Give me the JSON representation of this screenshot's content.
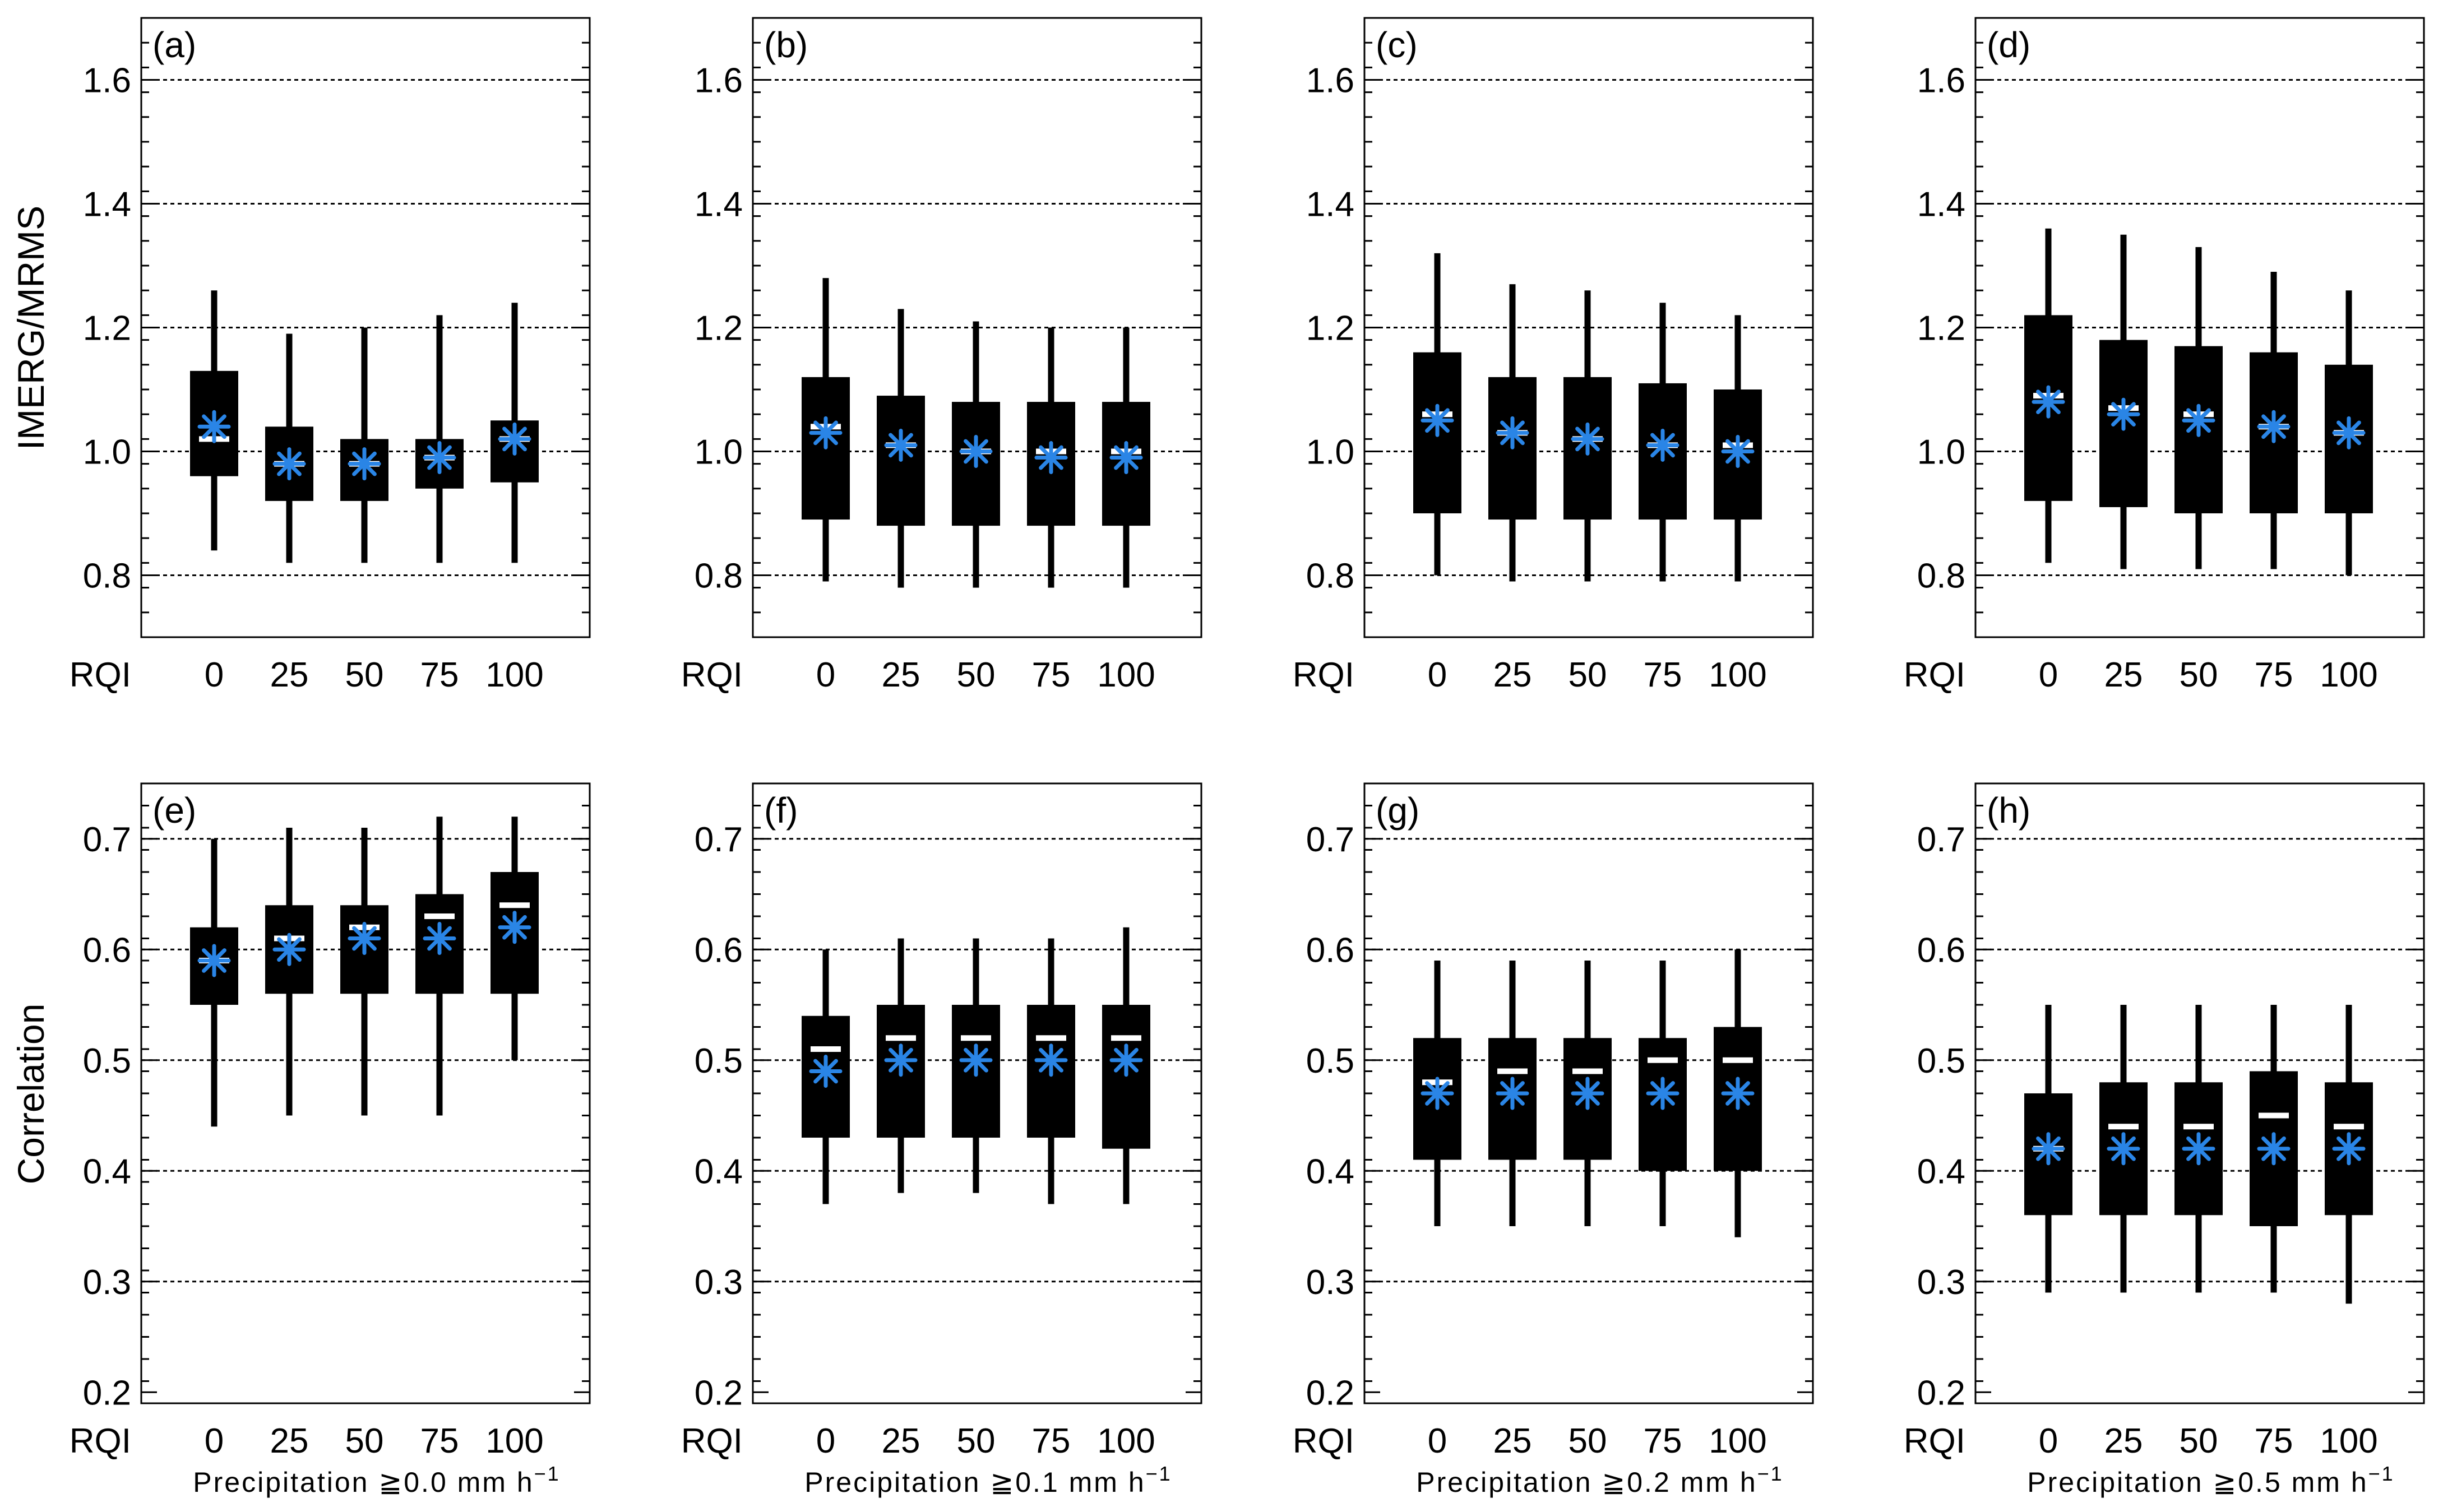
{
  "colors": {
    "box": "#000000",
    "median": "#ffffff",
    "mean": "#2a85e6",
    "grid": "#000000"
  },
  "x_axis_name": "RQI",
  "row_ylabels": [
    "IMERG/MRMS",
    "Correlation"
  ],
  "chart_data": [
    {
      "type": "box",
      "panel": "(a)",
      "ylabel": "IMERG/MRMS",
      "xlabel": "",
      "categories": [
        "0",
        "25",
        "50",
        "75",
        "100"
      ],
      "ylim": [
        0.7,
        1.7
      ],
      "yticks": [
        "0.8",
        "1.0",
        "1.2",
        "1.4",
        "1.6"
      ],
      "gridlines": [
        0.8,
        1.0,
        1.2,
        1.4,
        1.6
      ],
      "boxes": [
        {
          "min": 0.84,
          "q1": 0.96,
          "median": 1.02,
          "q3": 1.13,
          "max": 1.26,
          "mean": 1.04
        },
        {
          "min": 0.82,
          "q1": 0.92,
          "median": 0.98,
          "q3": 1.04,
          "max": 1.19,
          "mean": 0.98
        },
        {
          "min": 0.82,
          "q1": 0.92,
          "median": 0.98,
          "q3": 1.02,
          "max": 1.2,
          "mean": 0.98
        },
        {
          "min": 0.82,
          "q1": 0.94,
          "median": 0.99,
          "q3": 1.02,
          "max": 1.22,
          "mean": 0.99
        },
        {
          "min": 0.82,
          "q1": 0.95,
          "median": 1.02,
          "q3": 1.05,
          "max": 1.24,
          "mean": 1.02
        }
      ]
    },
    {
      "type": "box",
      "panel": "(b)",
      "ylabel": "",
      "xlabel": "",
      "categories": [
        "0",
        "25",
        "50",
        "75",
        "100"
      ],
      "ylim": [
        0.7,
        1.7
      ],
      "yticks": [
        "0.8",
        "1.0",
        "1.2",
        "1.4",
        "1.6"
      ],
      "gridlines": [
        0.8,
        1.0,
        1.2,
        1.4,
        1.6
      ],
      "boxes": [
        {
          "min": 0.79,
          "q1": 0.89,
          "median": 1.04,
          "q3": 1.12,
          "max": 1.28,
          "mean": 1.03
        },
        {
          "min": 0.78,
          "q1": 0.88,
          "median": 1.01,
          "q3": 1.09,
          "max": 1.23,
          "mean": 1.01
        },
        {
          "min": 0.78,
          "q1": 0.88,
          "median": 1.0,
          "q3": 1.08,
          "max": 1.21,
          "mean": 1.0
        },
        {
          "min": 0.78,
          "q1": 0.88,
          "median": 1.0,
          "q3": 1.08,
          "max": 1.2,
          "mean": 0.99
        },
        {
          "min": 0.78,
          "q1": 0.88,
          "median": 1.0,
          "q3": 1.08,
          "max": 1.2,
          "mean": 0.99
        }
      ]
    },
    {
      "type": "box",
      "panel": "(c)",
      "ylabel": "",
      "xlabel": "",
      "categories": [
        "0",
        "25",
        "50",
        "75",
        "100"
      ],
      "ylim": [
        0.7,
        1.7
      ],
      "yticks": [
        "0.8",
        "1.0",
        "1.2",
        "1.4",
        "1.6"
      ],
      "gridlines": [
        0.8,
        1.0,
        1.2,
        1.4,
        1.6
      ],
      "boxes": [
        {
          "min": 0.8,
          "q1": 0.9,
          "median": 1.06,
          "q3": 1.16,
          "max": 1.32,
          "mean": 1.05
        },
        {
          "min": 0.79,
          "q1": 0.89,
          "median": 1.03,
          "q3": 1.12,
          "max": 1.27,
          "mean": 1.03
        },
        {
          "min": 0.79,
          "q1": 0.89,
          "median": 1.02,
          "q3": 1.12,
          "max": 1.26,
          "mean": 1.02
        },
        {
          "min": 0.79,
          "q1": 0.89,
          "median": 1.01,
          "q3": 1.11,
          "max": 1.24,
          "mean": 1.01
        },
        {
          "min": 0.79,
          "q1": 0.89,
          "median": 1.01,
          "q3": 1.1,
          "max": 1.22,
          "mean": 1.0
        }
      ]
    },
    {
      "type": "box",
      "panel": "(d)",
      "ylabel": "",
      "xlabel": "",
      "categories": [
        "0",
        "25",
        "50",
        "75",
        "100"
      ],
      "ylim": [
        0.7,
        1.7
      ],
      "yticks": [
        "0.8",
        "1.0",
        "1.2",
        "1.4",
        "1.6"
      ],
      "gridlines": [
        0.8,
        1.0,
        1.2,
        1.4,
        1.6
      ],
      "boxes": [
        {
          "min": 0.82,
          "q1": 0.92,
          "median": 1.09,
          "q3": 1.22,
          "max": 1.36,
          "mean": 1.08
        },
        {
          "min": 0.81,
          "q1": 0.91,
          "median": 1.07,
          "q3": 1.18,
          "max": 1.35,
          "mean": 1.06
        },
        {
          "min": 0.81,
          "q1": 0.9,
          "median": 1.06,
          "q3": 1.17,
          "max": 1.33,
          "mean": 1.05
        },
        {
          "min": 0.81,
          "q1": 0.9,
          "median": 1.04,
          "q3": 1.16,
          "max": 1.29,
          "mean": 1.04
        },
        {
          "min": 0.8,
          "q1": 0.9,
          "median": 1.03,
          "q3": 1.14,
          "max": 1.26,
          "mean": 1.03
        }
      ]
    },
    {
      "type": "box",
      "panel": "(e)",
      "ylabel": "Correlation",
      "xlabel_prefix": "Precipitation ",
      "xlabel_threshold": "≧0.0",
      "xlabel_unit": "mm h",
      "xlabel_exp": "−1",
      "categories": [
        "0",
        "25",
        "50",
        "75",
        "100"
      ],
      "ylim": [
        0.19,
        0.75
      ],
      "yticks": [
        "0.2",
        "0.3",
        "0.4",
        "0.5",
        "0.6",
        "0.7"
      ],
      "gridlines": [
        0.3,
        0.4,
        0.5,
        0.6,
        0.7
      ],
      "boxes": [
        {
          "min": 0.44,
          "q1": 0.55,
          "median": 0.59,
          "q3": 0.62,
          "max": 0.7,
          "mean": 0.59
        },
        {
          "min": 0.45,
          "q1": 0.56,
          "median": 0.61,
          "q3": 0.64,
          "max": 0.71,
          "mean": 0.6
        },
        {
          "min": 0.45,
          "q1": 0.56,
          "median": 0.62,
          "q3": 0.64,
          "max": 0.71,
          "mean": 0.61
        },
        {
          "min": 0.45,
          "q1": 0.56,
          "median": 0.63,
          "q3": 0.65,
          "max": 0.72,
          "mean": 0.61
        },
        {
          "min": 0.5,
          "q1": 0.56,
          "median": 0.64,
          "q3": 0.67,
          "max": 0.72,
          "mean": 0.62
        }
      ]
    },
    {
      "type": "box",
      "panel": "(f)",
      "ylabel": "",
      "xlabel_prefix": "Precipitation ",
      "xlabel_threshold": "≧0.1",
      "xlabel_unit": "mm h",
      "xlabel_exp": "−1",
      "categories": [
        "0",
        "25",
        "50",
        "75",
        "100"
      ],
      "ylim": [
        0.19,
        0.75
      ],
      "yticks": [
        "0.2",
        "0.3",
        "0.4",
        "0.5",
        "0.6",
        "0.7"
      ],
      "gridlines": [
        0.3,
        0.4,
        0.5,
        0.6,
        0.7
      ],
      "boxes": [
        {
          "min": 0.37,
          "q1": 0.43,
          "median": 0.51,
          "q3": 0.54,
          "max": 0.6,
          "mean": 0.49
        },
        {
          "min": 0.38,
          "q1": 0.43,
          "median": 0.52,
          "q3": 0.55,
          "max": 0.61,
          "mean": 0.5
        },
        {
          "min": 0.38,
          "q1": 0.43,
          "median": 0.52,
          "q3": 0.55,
          "max": 0.61,
          "mean": 0.5
        },
        {
          "min": 0.37,
          "q1": 0.43,
          "median": 0.52,
          "q3": 0.55,
          "max": 0.61,
          "mean": 0.5
        },
        {
          "min": 0.37,
          "q1": 0.42,
          "median": 0.52,
          "q3": 0.55,
          "max": 0.62,
          "mean": 0.5
        }
      ]
    },
    {
      "type": "box",
      "panel": "(g)",
      "ylabel": "",
      "xlabel_prefix": "Precipitation ",
      "xlabel_threshold": "≧0.2",
      "xlabel_unit": "mm h",
      "xlabel_exp": "−1",
      "categories": [
        "0",
        "25",
        "50",
        "75",
        "100"
      ],
      "ylim": [
        0.19,
        0.75
      ],
      "yticks": [
        "0.2",
        "0.3",
        "0.4",
        "0.5",
        "0.6",
        "0.7"
      ],
      "gridlines": [
        0.3,
        0.4,
        0.5,
        0.6,
        0.7
      ],
      "boxes": [
        {
          "min": 0.35,
          "q1": 0.41,
          "median": 0.48,
          "q3": 0.52,
          "max": 0.59,
          "mean": 0.47
        },
        {
          "min": 0.35,
          "q1": 0.41,
          "median": 0.49,
          "q3": 0.52,
          "max": 0.59,
          "mean": 0.47
        },
        {
          "min": 0.35,
          "q1": 0.41,
          "median": 0.49,
          "q3": 0.52,
          "max": 0.59,
          "mean": 0.47
        },
        {
          "min": 0.35,
          "q1": 0.4,
          "median": 0.5,
          "q3": 0.52,
          "max": 0.59,
          "mean": 0.47
        },
        {
          "min": 0.34,
          "q1": 0.4,
          "median": 0.5,
          "q3": 0.53,
          "max": 0.6,
          "mean": 0.47
        }
      ]
    },
    {
      "type": "box",
      "panel": "(h)",
      "ylabel": "",
      "xlabel_prefix": "Precipitation ",
      "xlabel_threshold": "≧0.5",
      "xlabel_unit": "mm h",
      "xlabel_exp": "−1",
      "categories": [
        "0",
        "25",
        "50",
        "75",
        "100"
      ],
      "ylim": [
        0.19,
        0.75
      ],
      "yticks": [
        "0.2",
        "0.3",
        "0.4",
        "0.5",
        "0.6",
        "0.7"
      ],
      "gridlines": [
        0.3,
        0.4,
        0.5,
        0.6,
        0.7
      ],
      "boxes": [
        {
          "min": 0.29,
          "q1": 0.36,
          "median": 0.42,
          "q3": 0.47,
          "max": 0.55,
          "mean": 0.42
        },
        {
          "min": 0.29,
          "q1": 0.36,
          "median": 0.44,
          "q3": 0.48,
          "max": 0.55,
          "mean": 0.42
        },
        {
          "min": 0.29,
          "q1": 0.36,
          "median": 0.44,
          "q3": 0.48,
          "max": 0.55,
          "mean": 0.42
        },
        {
          "min": 0.29,
          "q1": 0.35,
          "median": 0.45,
          "q3": 0.49,
          "max": 0.55,
          "mean": 0.42
        },
        {
          "min": 0.28,
          "q1": 0.36,
          "median": 0.44,
          "q3": 0.48,
          "max": 0.55,
          "mean": 0.42
        }
      ]
    }
  ]
}
